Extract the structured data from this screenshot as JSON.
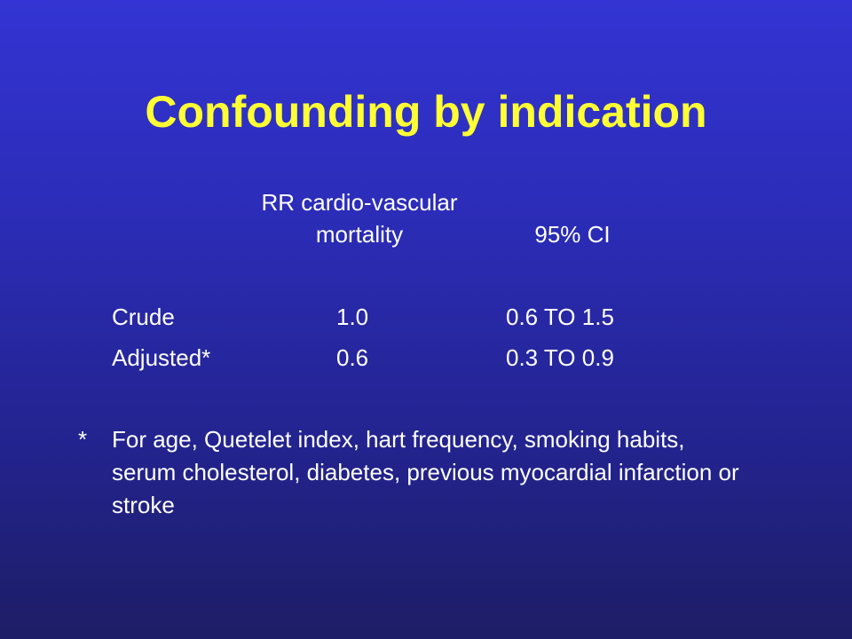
{
  "slide": {
    "title": "Confounding by indication",
    "table": {
      "header_rr_line1": "RR cardio-vascular",
      "header_rr_line2": "mortality",
      "header_ci": "95% CI",
      "rows": [
        {
          "label": "Crude",
          "rr": "1.0",
          "ci": "0.6 TO 1.5"
        },
        {
          "label": "Adjusted*",
          "rr": "0.6",
          "ci": "0.3 TO 0.9"
        }
      ]
    },
    "footnote": {
      "mark": "*",
      "text": "For age, Quetelet index, hart frequency, smoking habits, serum cholesterol, diabetes, previous myocardial infarction or stroke"
    }
  },
  "colors": {
    "title": "#ffff33",
    "text": "#ffffff",
    "background_top": "#3334d3",
    "background_bottom": "#1d1d66"
  }
}
